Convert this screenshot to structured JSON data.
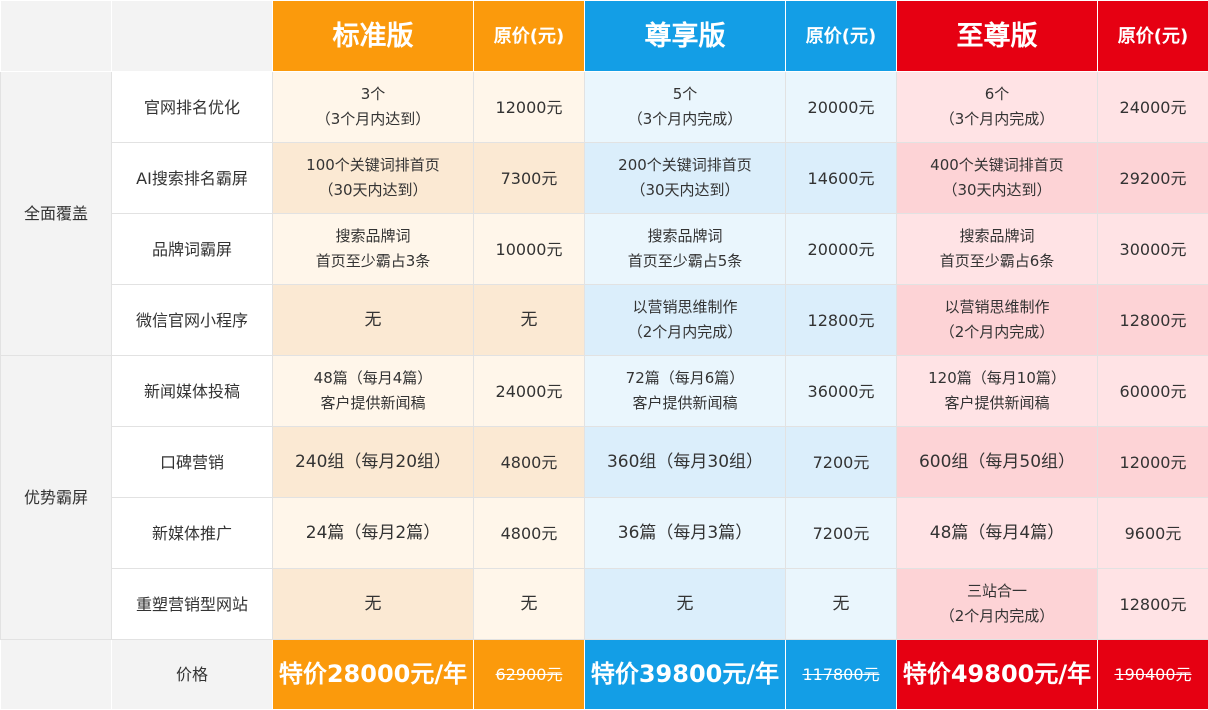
{
  "header": {
    "standard": "标准版",
    "premium": "尊享版",
    "supreme": "至尊版",
    "original_price": "原价(元)"
  },
  "categories": [
    "全面覆盖",
    "优势霸屏"
  ],
  "rows": [
    {
      "feature": "官网排名优化",
      "std": [
        "3个",
        "（3个月内达到）"
      ],
      "std_price": "12000元",
      "zx": [
        "5个",
        "（3个月内完成）"
      ],
      "zx_price": "20000元",
      "zz": [
        "6个",
        "（3个月内完成）"
      ],
      "zz_price": "24000元"
    },
    {
      "feature": "AI搜索排名霸屏",
      "std": [
        "100个关键词排首页",
        "（30天内达到）"
      ],
      "std_price": "7300元",
      "zx": [
        "200个关键词排首页",
        "（30天内达到）"
      ],
      "zx_price": "14600元",
      "zz": [
        "400个关键词排首页",
        "（30天内达到）"
      ],
      "zz_price": "29200元"
    },
    {
      "feature": "品牌词霸屏",
      "std": [
        "搜索品牌词",
        "首页至少霸占3条"
      ],
      "std_price": "10000元",
      "zx": [
        "搜索品牌词",
        "首页至少霸占5条"
      ],
      "zx_price": "20000元",
      "zz": [
        "搜索品牌词",
        "首页至少霸占6条"
      ],
      "zz_price": "30000元"
    },
    {
      "feature": "微信官网小程序",
      "std": [
        "无",
        ""
      ],
      "std_price": "无",
      "zx": [
        "以营销思维制作",
        "（2个月内完成）"
      ],
      "zx_price": "12800元",
      "zz": [
        "以营销思维制作",
        "（2个月内完成）"
      ],
      "zz_price": "12800元"
    },
    {
      "feature": "新闻媒体投稿",
      "std": [
        "48篇（每月4篇）",
        "客户提供新闻稿"
      ],
      "std_price": "24000元",
      "zx": [
        "72篇（每月6篇）",
        "客户提供新闻稿"
      ],
      "zx_price": "36000元",
      "zz": [
        "120篇（每月10篇）",
        "客户提供新闻稿"
      ],
      "zz_price": "60000元"
    },
    {
      "feature": "口碑营销",
      "std": [
        "240组（每月20组）",
        ""
      ],
      "std_price": "4800元",
      "zx": [
        "360组（每月30组）",
        ""
      ],
      "zx_price": "7200元",
      "zz": [
        "600组（每月50组）",
        ""
      ],
      "zz_price": "12000元"
    },
    {
      "feature": "新媒体推广",
      "std": [
        "24篇（每月2篇）",
        ""
      ],
      "std_price": "4800元",
      "zx": [
        "36篇（每月3篇）",
        ""
      ],
      "zx_price": "7200元",
      "zz": [
        "48篇（每月4篇）",
        ""
      ],
      "zz_price": "9600元"
    },
    {
      "feature": "重塑营销型网站",
      "std": [
        "无",
        ""
      ],
      "std_price": "无",
      "zx": [
        "无",
        ""
      ],
      "zx_price": "无",
      "zz": [
        "三站合一",
        "（2个月内完成）"
      ],
      "zz_price": "12800元"
    }
  ],
  "price_row": {
    "label": "价格",
    "std_special": "特价28000元/年",
    "std_original": "62900元",
    "zx_special": "特价39800元/年",
    "zx_original": "117800元",
    "zz_special": "特价49800元/年",
    "zz_original": "190400元"
  }
}
